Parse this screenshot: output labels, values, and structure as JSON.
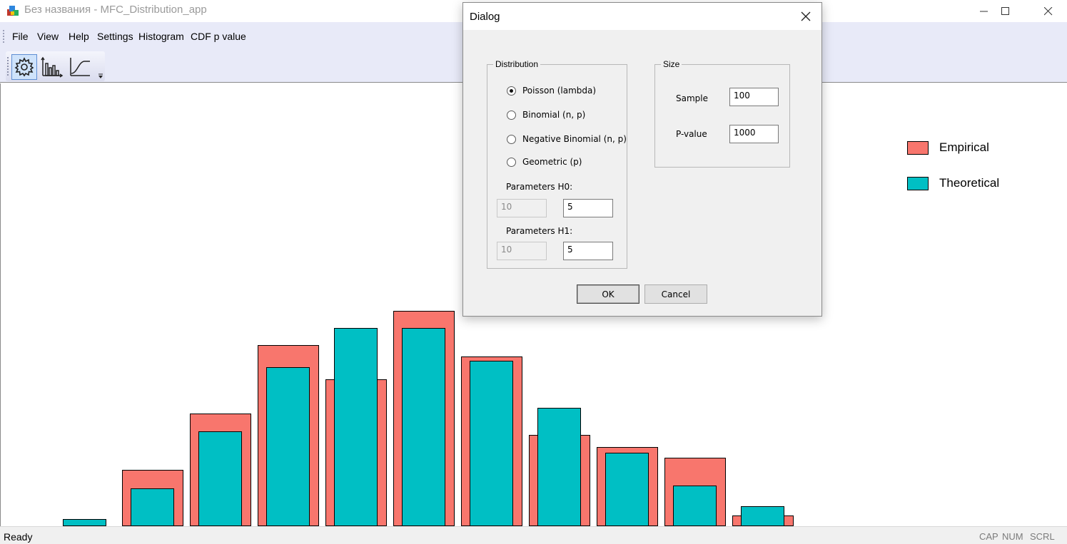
{
  "window": {
    "title": "Без названия - MFC_Distribution_app"
  },
  "menu": {
    "items": [
      "File",
      "View",
      "Help",
      "Settings",
      "Histogram",
      "CDF p value"
    ]
  },
  "toolbar": {
    "buttons": [
      {
        "icon": "gear-icon",
        "active": true
      },
      {
        "icon": "histogram-icon",
        "active": false
      },
      {
        "icon": "cdf-curve-icon",
        "active": false
      }
    ]
  },
  "legend": {
    "items": [
      {
        "label": "Empirical",
        "color": "#f8766d"
      },
      {
        "label": "Theoretical",
        "color": "#00bfc4"
      }
    ]
  },
  "chart_data": {
    "type": "bar",
    "series": [
      {
        "name": "Empirical",
        "color": "#f8766d",
        "values": [
          0,
          78,
          157,
          253,
          205,
          301,
          237,
          127,
          110,
          95,
          14
        ]
      },
      {
        "name": "Theoretical",
        "color": "#00bfc4",
        "values": [
          9,
          52,
          132,
          222,
          277,
          277,
          231,
          165,
          102,
          56,
          27
        ]
      }
    ]
  },
  "status": {
    "text": "Ready",
    "indicators": [
      "CAP",
      "NUM",
      "SCRL"
    ]
  },
  "dialog": {
    "title": "Dialog",
    "distribution": {
      "caption": "Distribution",
      "options": [
        "Poisson (lambda)",
        "Binomial (n, p)",
        "Negative Binomial (n, p)",
        "Geometric (p)"
      ],
      "selected_index": 0,
      "h0_label": "Parameters H0:",
      "h0_values": [
        "10",
        "5"
      ],
      "h1_label": "Parameters H1:",
      "h1_values": [
        "10",
        "5"
      ]
    },
    "size": {
      "caption": "Size",
      "sample_label": "Sample",
      "sample_value": "100",
      "pvalue_label": "P-value",
      "pvalue_value": "1000"
    },
    "ok_label": "OK",
    "cancel_label": "Cancel"
  }
}
